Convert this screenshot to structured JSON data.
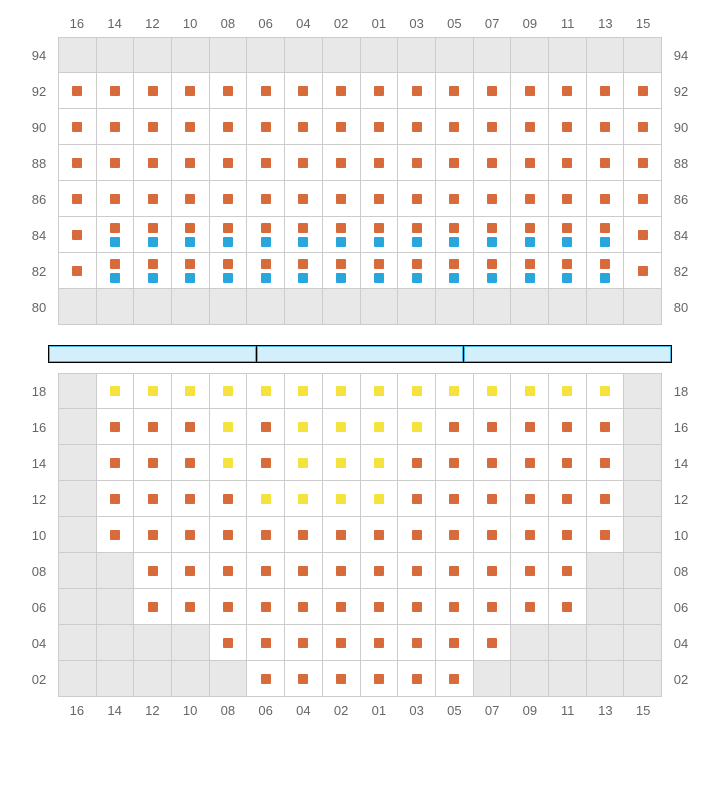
{
  "colors": {
    "orange": "#d86b3c",
    "blue": "#28a7df",
    "yellow": "#f5e23d",
    "empty_bg": "#e8e8e8",
    "cell_bg": "#ffffff",
    "border": "#cccccc",
    "label": "#666666",
    "stage_fill": "#d4effc",
    "stage_border": "#47b5e8"
  },
  "columns": [
    "16",
    "14",
    "12",
    "10",
    "08",
    "06",
    "04",
    "02",
    "01",
    "03",
    "05",
    "07",
    "09",
    "11",
    "13",
    "15"
  ],
  "upper": {
    "rows": [
      "94",
      "92",
      "90",
      "88",
      "86",
      "84",
      "82",
      "80"
    ],
    "cells": {
      "94": [
        {
          "t": "e"
        },
        {
          "t": "e"
        },
        {
          "t": "e"
        },
        {
          "t": "e"
        },
        {
          "t": "e"
        },
        {
          "t": "e"
        },
        {
          "t": "e"
        },
        {
          "t": "e"
        },
        {
          "t": "e"
        },
        {
          "t": "e"
        },
        {
          "t": "e"
        },
        {
          "t": "e"
        },
        {
          "t": "e"
        },
        {
          "t": "e"
        },
        {
          "t": "e"
        },
        {
          "t": "e"
        }
      ],
      "92": [
        {
          "s": [
            "o"
          ]
        },
        {
          "s": [
            "o"
          ]
        },
        {
          "s": [
            "o"
          ]
        },
        {
          "s": [
            "o"
          ]
        },
        {
          "s": [
            "o"
          ]
        },
        {
          "s": [
            "o"
          ]
        },
        {
          "s": [
            "o"
          ]
        },
        {
          "s": [
            "o"
          ]
        },
        {
          "s": [
            "o"
          ]
        },
        {
          "s": [
            "o"
          ]
        },
        {
          "s": [
            "o"
          ]
        },
        {
          "s": [
            "o"
          ]
        },
        {
          "s": [
            "o"
          ]
        },
        {
          "s": [
            "o"
          ]
        },
        {
          "s": [
            "o"
          ]
        },
        {
          "s": [
            "o"
          ]
        }
      ],
      "90": [
        {
          "s": [
            "o"
          ]
        },
        {
          "s": [
            "o"
          ]
        },
        {
          "s": [
            "o"
          ]
        },
        {
          "s": [
            "o"
          ]
        },
        {
          "s": [
            "o"
          ]
        },
        {
          "s": [
            "o"
          ]
        },
        {
          "s": [
            "o"
          ]
        },
        {
          "s": [
            "o"
          ]
        },
        {
          "s": [
            "o"
          ]
        },
        {
          "s": [
            "o"
          ]
        },
        {
          "s": [
            "o"
          ]
        },
        {
          "s": [
            "o"
          ]
        },
        {
          "s": [
            "o"
          ]
        },
        {
          "s": [
            "o"
          ]
        },
        {
          "s": [
            "o"
          ]
        },
        {
          "s": [
            "o"
          ]
        }
      ],
      "88": [
        {
          "s": [
            "o"
          ]
        },
        {
          "s": [
            "o"
          ]
        },
        {
          "s": [
            "o"
          ]
        },
        {
          "s": [
            "o"
          ]
        },
        {
          "s": [
            "o"
          ]
        },
        {
          "s": [
            "o"
          ]
        },
        {
          "s": [
            "o"
          ]
        },
        {
          "s": [
            "o"
          ]
        },
        {
          "s": [
            "o"
          ]
        },
        {
          "s": [
            "o"
          ]
        },
        {
          "s": [
            "o"
          ]
        },
        {
          "s": [
            "o"
          ]
        },
        {
          "s": [
            "o"
          ]
        },
        {
          "s": [
            "o"
          ]
        },
        {
          "s": [
            "o"
          ]
        },
        {
          "s": [
            "o"
          ]
        }
      ],
      "86": [
        {
          "s": [
            "o"
          ]
        },
        {
          "s": [
            "o"
          ]
        },
        {
          "s": [
            "o"
          ]
        },
        {
          "s": [
            "o"
          ]
        },
        {
          "s": [
            "o"
          ]
        },
        {
          "s": [
            "o"
          ]
        },
        {
          "s": [
            "o"
          ]
        },
        {
          "s": [
            "o"
          ]
        },
        {
          "s": [
            "o"
          ]
        },
        {
          "s": [
            "o"
          ]
        },
        {
          "s": [
            "o"
          ]
        },
        {
          "s": [
            "o"
          ]
        },
        {
          "s": [
            "o"
          ]
        },
        {
          "s": [
            "o"
          ]
        },
        {
          "s": [
            "o"
          ]
        },
        {
          "s": [
            "o"
          ]
        }
      ],
      "84": [
        {
          "s": [
            "o"
          ]
        },
        {
          "s": [
            "o",
            "b"
          ]
        },
        {
          "s": [
            "o",
            "b"
          ]
        },
        {
          "s": [
            "o",
            "b"
          ]
        },
        {
          "s": [
            "o",
            "b"
          ]
        },
        {
          "s": [
            "o",
            "b"
          ]
        },
        {
          "s": [
            "o",
            "b"
          ]
        },
        {
          "s": [
            "o",
            "b"
          ]
        },
        {
          "s": [
            "o",
            "b"
          ]
        },
        {
          "s": [
            "o",
            "b"
          ]
        },
        {
          "s": [
            "o",
            "b"
          ]
        },
        {
          "s": [
            "o",
            "b"
          ]
        },
        {
          "s": [
            "o",
            "b"
          ]
        },
        {
          "s": [
            "o",
            "b"
          ]
        },
        {
          "s": [
            "o",
            "b"
          ]
        },
        {
          "s": [
            "o"
          ]
        }
      ],
      "82": [
        {
          "s": [
            "o"
          ]
        },
        {
          "s": [
            "o",
            "b"
          ]
        },
        {
          "s": [
            "o",
            "b"
          ]
        },
        {
          "s": [
            "o",
            "b"
          ]
        },
        {
          "s": [
            "o",
            "b"
          ]
        },
        {
          "s": [
            "o",
            "b"
          ]
        },
        {
          "s": [
            "o",
            "b"
          ]
        },
        {
          "s": [
            "o",
            "b"
          ]
        },
        {
          "s": [
            "o",
            "b"
          ]
        },
        {
          "s": [
            "o",
            "b"
          ]
        },
        {
          "s": [
            "o",
            "b"
          ]
        },
        {
          "s": [
            "o",
            "b"
          ]
        },
        {
          "s": [
            "o",
            "b"
          ]
        },
        {
          "s": [
            "o",
            "b"
          ]
        },
        {
          "s": [
            "o",
            "b"
          ]
        },
        {
          "s": [
            "o"
          ]
        }
      ],
      "80": [
        {
          "t": "e"
        },
        {
          "t": "e"
        },
        {
          "t": "e"
        },
        {
          "t": "e"
        },
        {
          "t": "e"
        },
        {
          "t": "e"
        },
        {
          "t": "e"
        },
        {
          "t": "e"
        },
        {
          "t": "e"
        },
        {
          "t": "e"
        },
        {
          "t": "e"
        },
        {
          "t": "e"
        },
        {
          "t": "e"
        },
        {
          "t": "e"
        },
        {
          "t": "e"
        },
        {
          "t": "e"
        }
      ]
    }
  },
  "stage_segments": 3,
  "lower": {
    "rows": [
      "18",
      "16",
      "14",
      "12",
      "10",
      "08",
      "06",
      "04",
      "02"
    ],
    "cells": {
      "18": [
        {
          "t": "e"
        },
        {
          "s": [
            "y"
          ]
        },
        {
          "s": [
            "y"
          ]
        },
        {
          "s": [
            "y"
          ]
        },
        {
          "s": [
            "y"
          ]
        },
        {
          "s": [
            "y"
          ]
        },
        {
          "s": [
            "y"
          ]
        },
        {
          "s": [
            "y"
          ]
        },
        {
          "s": [
            "y"
          ]
        },
        {
          "s": [
            "y"
          ]
        },
        {
          "s": [
            "y"
          ]
        },
        {
          "s": [
            "y"
          ]
        },
        {
          "s": [
            "y"
          ]
        },
        {
          "s": [
            "y"
          ]
        },
        {
          "s": [
            "y"
          ]
        },
        {
          "t": "e"
        }
      ],
      "16": [
        {
          "t": "e"
        },
        {
          "s": [
            "o"
          ]
        },
        {
          "s": [
            "o"
          ]
        },
        {
          "s": [
            "o"
          ]
        },
        {
          "s": [
            "y"
          ]
        },
        {
          "s": [
            "o"
          ]
        },
        {
          "s": [
            "y"
          ]
        },
        {
          "s": [
            "y"
          ]
        },
        {
          "s": [
            "y"
          ]
        },
        {
          "s": [
            "y"
          ]
        },
        {
          "s": [
            "o"
          ]
        },
        {
          "s": [
            "o"
          ]
        },
        {
          "s": [
            "o"
          ]
        },
        {
          "s": [
            "o"
          ]
        },
        {
          "s": [
            "o"
          ]
        },
        {
          "t": "e"
        }
      ],
      "14": [
        {
          "t": "e"
        },
        {
          "s": [
            "o"
          ]
        },
        {
          "s": [
            "o"
          ]
        },
        {
          "s": [
            "o"
          ]
        },
        {
          "s": [
            "y"
          ]
        },
        {
          "s": [
            "o"
          ]
        },
        {
          "s": [
            "y"
          ]
        },
        {
          "s": [
            "y"
          ]
        },
        {
          "s": [
            "y"
          ]
        },
        {
          "s": [
            "o"
          ]
        },
        {
          "s": [
            "o"
          ]
        },
        {
          "s": [
            "o"
          ]
        },
        {
          "s": [
            "o"
          ]
        },
        {
          "s": [
            "o"
          ]
        },
        {
          "s": [
            "o"
          ]
        },
        {
          "t": "e"
        }
      ],
      "12": [
        {
          "t": "e"
        },
        {
          "s": [
            "o"
          ]
        },
        {
          "s": [
            "o"
          ]
        },
        {
          "s": [
            "o"
          ]
        },
        {
          "s": [
            "o"
          ]
        },
        {
          "s": [
            "y"
          ]
        },
        {
          "s": [
            "y"
          ]
        },
        {
          "s": [
            "y"
          ]
        },
        {
          "s": [
            "y"
          ]
        },
        {
          "s": [
            "o"
          ]
        },
        {
          "s": [
            "o"
          ]
        },
        {
          "s": [
            "o"
          ]
        },
        {
          "s": [
            "o"
          ]
        },
        {
          "s": [
            "o"
          ]
        },
        {
          "s": [
            "o"
          ]
        },
        {
          "t": "e"
        }
      ],
      "10": [
        {
          "t": "e"
        },
        {
          "s": [
            "o"
          ]
        },
        {
          "s": [
            "o"
          ]
        },
        {
          "s": [
            "o"
          ]
        },
        {
          "s": [
            "o"
          ]
        },
        {
          "s": [
            "o"
          ]
        },
        {
          "s": [
            "o"
          ]
        },
        {
          "s": [
            "o"
          ]
        },
        {
          "s": [
            "o"
          ]
        },
        {
          "s": [
            "o"
          ]
        },
        {
          "s": [
            "o"
          ]
        },
        {
          "s": [
            "o"
          ]
        },
        {
          "s": [
            "o"
          ]
        },
        {
          "s": [
            "o"
          ]
        },
        {
          "s": [
            "o"
          ]
        },
        {
          "t": "e"
        }
      ],
      "08": [
        {
          "t": "e"
        },
        {
          "t": "e"
        },
        {
          "s": [
            "o"
          ]
        },
        {
          "s": [
            "o"
          ]
        },
        {
          "s": [
            "o"
          ]
        },
        {
          "s": [
            "o"
          ]
        },
        {
          "s": [
            "o"
          ]
        },
        {
          "s": [
            "o"
          ]
        },
        {
          "s": [
            "o"
          ]
        },
        {
          "s": [
            "o"
          ]
        },
        {
          "s": [
            "o"
          ]
        },
        {
          "s": [
            "o"
          ]
        },
        {
          "s": [
            "o"
          ]
        },
        {
          "s": [
            "o"
          ]
        },
        {
          "t": "e"
        },
        {
          "t": "e"
        }
      ],
      "06": [
        {
          "t": "e"
        },
        {
          "t": "e"
        },
        {
          "s": [
            "o"
          ]
        },
        {
          "s": [
            "o"
          ]
        },
        {
          "s": [
            "o"
          ]
        },
        {
          "s": [
            "o"
          ]
        },
        {
          "s": [
            "o"
          ]
        },
        {
          "s": [
            "o"
          ]
        },
        {
          "s": [
            "o"
          ]
        },
        {
          "s": [
            "o"
          ]
        },
        {
          "s": [
            "o"
          ]
        },
        {
          "s": [
            "o"
          ]
        },
        {
          "s": [
            "o"
          ]
        },
        {
          "s": [
            "o"
          ]
        },
        {
          "t": "e"
        },
        {
          "t": "e"
        }
      ],
      "04": [
        {
          "t": "e"
        },
        {
          "t": "e"
        },
        {
          "t": "e"
        },
        {
          "t": "e"
        },
        {
          "s": [
            "o"
          ]
        },
        {
          "s": [
            "o"
          ]
        },
        {
          "s": [
            "o"
          ]
        },
        {
          "s": [
            "o"
          ]
        },
        {
          "s": [
            "o"
          ]
        },
        {
          "s": [
            "o"
          ]
        },
        {
          "s": [
            "o"
          ]
        },
        {
          "s": [
            "o"
          ]
        },
        {
          "t": "e"
        },
        {
          "t": "e"
        },
        {
          "t": "e"
        },
        {
          "t": "e"
        }
      ],
      "02": [
        {
          "t": "e"
        },
        {
          "t": "e"
        },
        {
          "t": "e"
        },
        {
          "t": "e"
        },
        {
          "t": "e"
        },
        {
          "s": [
            "o"
          ]
        },
        {
          "s": [
            "o"
          ]
        },
        {
          "s": [
            "o"
          ]
        },
        {
          "s": [
            "o"
          ]
        },
        {
          "s": [
            "o"
          ]
        },
        {
          "s": [
            "o"
          ]
        },
        {
          "t": "e"
        },
        {
          "t": "e"
        },
        {
          "t": "e"
        },
        {
          "t": "e"
        },
        {
          "t": "e"
        }
      ]
    }
  }
}
